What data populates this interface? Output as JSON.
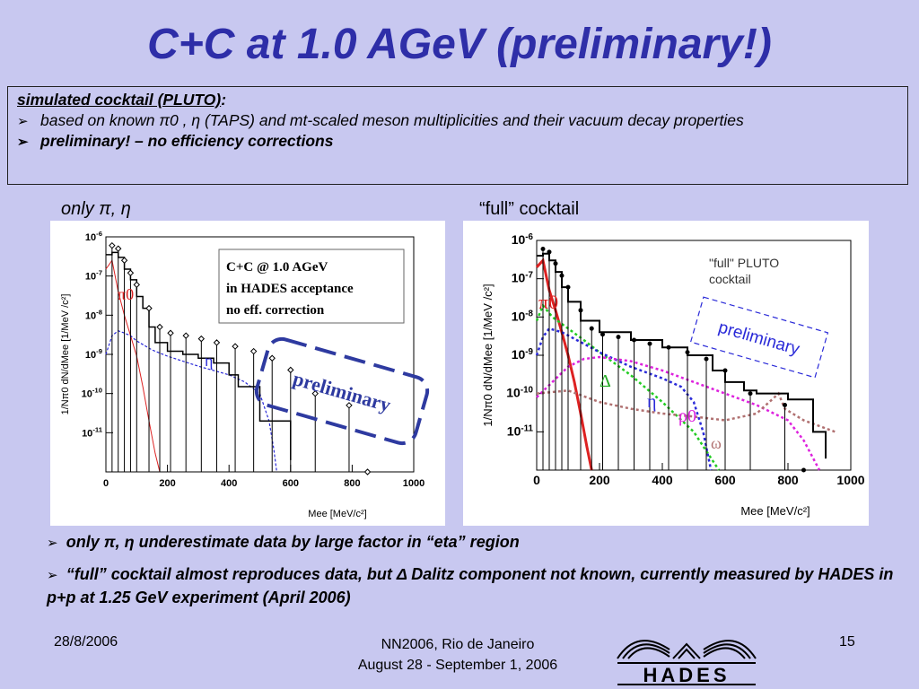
{
  "slide": {
    "title": "C+C at 1.0 AGeV (preliminary!)",
    "box_heading": "simulated cocktail (PLUTO)",
    "box_colon": ":",
    "box_bullets": [
      "based on known π0 , η (TAPS) and mt-scaled meson multiplicities and their vacuum decay properties",
      "preliminary! – no efficiency corrections"
    ],
    "left_plot_label": "only π, η",
    "right_plot_label": "“full” cocktail",
    "bottom_bullets": [
      "only π, η underestimate data by large factor in “eta” region",
      "“full” cocktail almost reproduces data, but Δ Dalitz component not known,  currently measured by HADES in  p+p at 1.25 GeV experiment (April 2006)"
    ],
    "footer": {
      "date": "28/8/2006",
      "conf_line1": "NN2006, Rio de Janeiro",
      "conf_line2": "August 28 - September 1, 2006",
      "page": "15",
      "logo_text": "HADES"
    }
  },
  "chart_data": [
    {
      "type": "line",
      "xlabel": "Mee  [MeV/c²]",
      "ylabel": "1/Nπ0 dN/dMee  [1/MeV /c²]",
      "xlim": [
        0,
        1000
      ],
      "ylim_log10": [
        -12,
        -6
      ],
      "x_ticks": [
        0,
        200,
        400,
        600,
        800,
        1000
      ],
      "y_ticks": [
        "10-6",
        "10-7",
        "10-8",
        "10-9",
        "10-10",
        "10-11"
      ],
      "annotation_box": [
        "C+C @ 1.0 AGeV",
        "in HADES acceptance",
        "no eff. correction"
      ],
      "stamp": "preliminary",
      "labels": {
        "pi0": "π0",
        "eta": "η"
      },
      "series": [
        {
          "name": "π0",
          "color": "#dd2222",
          "x": [
            0,
            20,
            40,
            60,
            80,
            100,
            120,
            140,
            160,
            175
          ],
          "y": [
            1.5e-07,
            2.5e-07,
            4e-08,
            1e-08,
            3e-09,
            9e-10,
            1.5e-10,
            2e-11,
            3e-12,
            1e-12
          ]
        },
        {
          "name": "η",
          "color": "#2a2ad8",
          "x": [
            0,
            20,
            40,
            60,
            80,
            100,
            150,
            200,
            300,
            400,
            450,
            500,
            530,
            545,
            555
          ],
          "y": [
            1e-09,
            3e-09,
            4e-09,
            3.5e-09,
            3e-09,
            2.2e-09,
            1.3e-09,
            9e-10,
            5e-10,
            3e-10,
            2e-10,
            1e-10,
            2e-11,
            4e-12,
            1e-12
          ]
        },
        {
          "name": "sum",
          "x": [
            0,
            20,
            40,
            60,
            80,
            100,
            120,
            140,
            160,
            200,
            250,
            300,
            350,
            400,
            430,
            500,
            600
          ],
          "y": [
            3.5e-07,
            4e-07,
            3e-07,
            1.5e-07,
            8e-08,
            3e-08,
            1.5e-08,
            5e-09,
            2e-09,
            1.2e-09,
            1e-09,
            8e-10,
            6e-10,
            3e-10,
            1.5e-10,
            2e-11,
            2e-12
          ]
        },
        {
          "name": "data",
          "x": [
            20,
            40,
            60,
            80,
            100,
            140,
            175,
            210,
            260,
            310,
            360,
            420,
            480,
            540,
            600,
            680,
            790,
            850
          ],
          "y": [
            6e-07,
            5e-07,
            2.5e-07,
            1.2e-07,
            6e-08,
            1.5e-08,
            5e-09,
            3.5e-09,
            3e-09,
            2.5e-09,
            2e-09,
            1.6e-09,
            1.2e-09,
            8e-10,
            4e-10,
            1e-10,
            5e-11,
            1e-12
          ]
        }
      ]
    },
    {
      "type": "line",
      "xlabel": "Mee  [MeV/c²]",
      "ylabel": "1/Nπ0 dN/dMee  [1/MeV /c²]",
      "xlim": [
        0,
        1000
      ],
      "ylim_log10": [
        -12,
        -6
      ],
      "x_ticks": [
        0,
        200,
        400,
        600,
        800,
        1000
      ],
      "y_ticks": [
        "10-6",
        "10-7",
        "10-8",
        "10-9",
        "10-10",
        "10-11"
      ],
      "annotation_box": [
        "\"full\" PLUTO",
        "cocktail"
      ],
      "stamp": "preliminary",
      "labels": {
        "pi0": "π0",
        "delta": "Δ",
        "eta": "η",
        "rho": "ρ0",
        "omega": "ω"
      },
      "series": [
        {
          "name": "π0",
          "color": "#dd2222",
          "x": [
            0,
            20,
            40,
            60,
            80,
            100,
            120,
            140,
            160,
            175
          ],
          "y": [
            2e-07,
            3e-07,
            5e-08,
            1.5e-08,
            4e-09,
            1e-09,
            2e-10,
            3e-11,
            4e-12,
            1e-12
          ]
        },
        {
          "name": "Δ",
          "color": "#22cc22",
          "x": [
            0,
            20,
            50,
            100,
            150,
            200,
            300,
            400,
            500,
            580
          ],
          "y": [
            8e-09,
            2e-08,
            1e-08,
            5e-09,
            2.5e-09,
            1.2e-09,
            3e-10,
            6e-11,
            1e-11,
            1e-12
          ]
        },
        {
          "name": "η",
          "color": "#2a2ad8",
          "x": [
            0,
            20,
            40,
            80,
            150,
            200,
            300,
            400,
            460,
            500,
            530,
            555
          ],
          "y": [
            1e-09,
            3e-09,
            5e-09,
            4e-09,
            2e-09,
            1.2e-09,
            5e-10,
            2.5e-10,
            1.5e-10,
            6e-11,
            1e-11,
            1e-12
          ]
        },
        {
          "name": "ρ0",
          "color": "#dd22dd",
          "x": [
            0,
            50,
            100,
            150,
            200,
            300,
            400,
            500,
            600,
            700,
            800,
            850,
            900
          ],
          "y": [
            8e-11,
            2e-10,
            5e-10,
            8e-10,
            9e-10,
            7e-10,
            4e-10,
            2e-10,
            1e-10,
            5e-11,
            2e-11,
            6e-12,
            1e-12
          ]
        },
        {
          "name": "ω",
          "color": "#b07070",
          "x": [
            0,
            100,
            200,
            300,
            400,
            500,
            600,
            700,
            770,
            790,
            850,
            950
          ],
          "y": [
            1e-10,
            1.2e-10,
            6e-11,
            4e-11,
            3e-11,
            2.5e-11,
            2e-11,
            3e-11,
            1e-10,
            4e-11,
            2e-11,
            1e-11
          ]
        },
        {
          "name": "sum",
          "x": [
            0,
            20,
            40,
            60,
            80,
            100,
            140,
            200,
            300,
            400,
            480,
            560,
            600,
            660,
            700,
            800,
            880,
            920
          ],
          "y": [
            4e-07,
            4.5e-07,
            3e-07,
            1.5e-07,
            6e-08,
            2.5e-08,
            8e-09,
            4e-09,
            2.5e-09,
            1.6e-09,
            1e-09,
            4e-10,
            2e-10,
            1.2e-10,
            1e-10,
            7e-11,
            1e-11,
            2e-12
          ]
        },
        {
          "name": "data",
          "x": [
            20,
            40,
            60,
            80,
            100,
            140,
            175,
            210,
            260,
            310,
            360,
            420,
            480,
            540,
            600,
            680,
            790,
            850
          ],
          "y": [
            6e-07,
            5e-07,
            2.5e-07,
            1.2e-07,
            6e-08,
            1.5e-08,
            5e-09,
            3.5e-09,
            3e-09,
            2.5e-09,
            2e-09,
            1.6e-09,
            1.2e-09,
            8e-10,
            4e-10,
            1e-10,
            5e-11,
            1e-12
          ]
        }
      ]
    }
  ]
}
